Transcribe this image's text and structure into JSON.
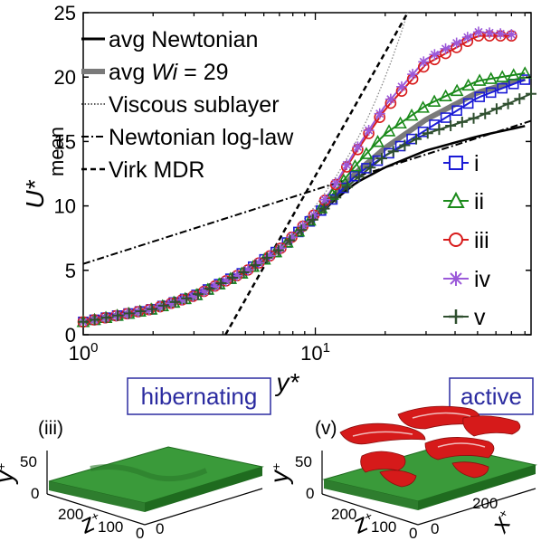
{
  "chart_data": {
    "type": "line",
    "ylabel": "U*",
    "ylabel_sub": "mean",
    "xlabel": "y*",
    "x_scale": "log",
    "xlim": [
      1,
      85
    ],
    "ylim": [
      0,
      25
    ],
    "xticks": [
      {
        "value": 1,
        "base": "10",
        "exp": "0"
      },
      {
        "value": 10,
        "base": "10",
        "exp": "1"
      }
    ],
    "yticks": [
      0,
      5,
      10,
      15,
      20,
      25
    ],
    "legend_main": {
      "placement": "top-left",
      "entries": [
        {
          "key": "avg_newtonian",
          "prefix": "avg Newtonian",
          "italic": "",
          "suffix": ""
        },
        {
          "key": "avg_wi",
          "prefix": "avg ",
          "italic": "Wi",
          "suffix": " = 29"
        },
        {
          "key": "viscous",
          "prefix": "Viscous sublayer",
          "italic": "",
          "suffix": ""
        },
        {
          "key": "loglaw",
          "prefix": "Newtonian log-law",
          "italic": "",
          "suffix": ""
        },
        {
          "key": "mdr",
          "prefix": "Virk MDR",
          "italic": "",
          "suffix": ""
        }
      ]
    },
    "legend_series": {
      "placement": "right",
      "entries": [
        {
          "key": "i",
          "label": "i"
        },
        {
          "key": "ii",
          "label": "ii"
        },
        {
          "key": "iii",
          "label": "iii"
        },
        {
          "key": "iv",
          "label": "iv"
        },
        {
          "key": "v",
          "label": "v"
        }
      ]
    },
    "reference_lines": {
      "viscous": {
        "x": [
          1,
          25
        ],
        "y": [
          1,
          25
        ]
      },
      "loglaw": {
        "x": [
          1,
          85
        ],
        "y": [
          5.5,
          16.6
        ]
      },
      "mdr": {
        "x": [
          4.1,
          25
        ],
        "y": [
          0,
          25
        ]
      }
    },
    "series": [
      {
        "key": "avg_newtonian",
        "color": "#000000",
        "x": [
          1,
          2,
          3,
          5,
          7,
          10,
          12,
          15,
          20,
          30,
          50,
          80
        ],
        "y": [
          1,
          2,
          3,
          4.9,
          6.6,
          9,
          10.4,
          11.8,
          13,
          14.3,
          15.4,
          16.2
        ]
      },
      {
        "key": "avg_wi",
        "color": "#7a7a7a",
        "x": [
          1,
          2,
          3,
          5,
          7,
          10,
          12,
          15,
          20,
          30,
          50,
          80
        ],
        "y": [
          1,
          2,
          3,
          4.9,
          6.6,
          9.2,
          10.7,
          12.6,
          14.5,
          16.7,
          18.8,
          19.9
        ]
      },
      {
        "key": "i",
        "color": "#1b1bd6",
        "marker": "square",
        "x": [
          1,
          2,
          3,
          5,
          7,
          10,
          12,
          15,
          20,
          30,
          50,
          80
        ],
        "y": [
          1,
          2,
          3,
          4.9,
          6.6,
          9.2,
          10.6,
          12.4,
          13.9,
          15.9,
          18.4,
          19.8
        ]
      },
      {
        "key": "ii",
        "color": "#1a8a1a",
        "marker": "triangle",
        "x": [
          1,
          2,
          3,
          5,
          7,
          10,
          12,
          15,
          20,
          30,
          50,
          80
        ],
        "y": [
          1,
          2,
          3,
          4.9,
          6.6,
          9.3,
          11,
          13.2,
          15.6,
          17.8,
          19.7,
          20.3
        ]
      },
      {
        "key": "iii",
        "color": "#d81b1b",
        "marker": "circle",
        "x": [
          1,
          2,
          3,
          5,
          7,
          10,
          12,
          15,
          20,
          30,
          50,
          70
        ],
        "y": [
          1,
          2,
          3,
          4.9,
          6.6,
          9.4,
          11.4,
          14.2,
          17.5,
          21,
          23.2,
          23.2
        ]
      },
      {
        "key": "iv",
        "color": "#9b59d9",
        "marker": "star",
        "x": [
          1,
          2,
          3,
          5,
          7,
          10,
          12,
          15,
          20,
          30,
          50,
          70
        ],
        "y": [
          1,
          2,
          3,
          4.9,
          6.6,
          9.4,
          11.5,
          14.4,
          17.8,
          21.4,
          23.5,
          23.3
        ]
      },
      {
        "key": "v",
        "color": "#2f4f2f",
        "marker": "plus",
        "x": [
          1,
          2,
          3,
          5,
          7,
          10,
          12,
          15,
          20,
          30,
          50,
          85
        ],
        "y": [
          1,
          2,
          3,
          4.9,
          6.6,
          9.1,
          10.5,
          12.1,
          13.9,
          15.6,
          16.9,
          18.7
        ]
      }
    ]
  },
  "tags": {
    "hibernating": "hibernating",
    "active": "active"
  },
  "panels": {
    "left": {
      "label": "(iii)",
      "y_axis": "y",
      "z_axis": "z",
      "sup": "+",
      "y_ticks": [
        "50",
        "0"
      ],
      "z_ticks": [
        "200",
        "100",
        "0"
      ],
      "x_ticks": [
        "0"
      ]
    },
    "right": {
      "label": "(v)",
      "y_axis": "y",
      "z_axis": "z",
      "x_axis": "x",
      "sup": "+",
      "y_ticks": [
        "50",
        "0"
      ],
      "z_ticks": [
        "200",
        "100",
        "0"
      ],
      "x_ticks": [
        "200",
        "0"
      ]
    }
  },
  "colors": {
    "surface": "#3a9a3a",
    "surface_dark": "#1f6b1f",
    "structures": "#d61a1a",
    "tag_border": "#2b2ba0"
  }
}
